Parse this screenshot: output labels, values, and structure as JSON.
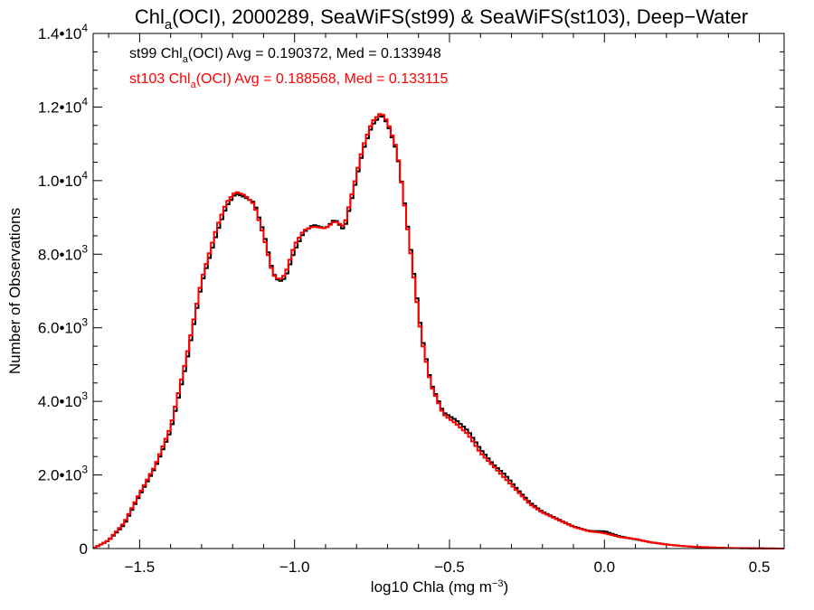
{
  "chart_data": {
    "type": "line",
    "step": true,
    "title": {
      "pre": "Chl",
      "sub": "a",
      "post": "(OCI), 2000289, SeaWiFS(st99) & SeaWiFS(st103), Deep−Water"
    },
    "xlabel": {
      "pre": "log10 Chla (mg m",
      "sup": "−3",
      "post": ")"
    },
    "ylabel": "Number of Observations",
    "xlim": [
      -1.65,
      0.58
    ],
    "ylim": [
      0,
      14000
    ],
    "x_ticks": [
      {
        "value": -1.5,
        "label": "−1.5"
      },
      {
        "value": -1.0,
        "label": "−1.0"
      },
      {
        "value": -0.5,
        "label": "−0.5"
      },
      {
        "value": 0.0,
        "label": "0.0"
      },
      {
        "value": 0.5,
        "label": "0.5"
      }
    ],
    "y_ticks": [
      {
        "value": 0,
        "mant": "0",
        "exp": ""
      },
      {
        "value": 2000,
        "mant": "2.0•10",
        "exp": "3"
      },
      {
        "value": 4000,
        "mant": "4.0•10",
        "exp": "3"
      },
      {
        "value": 6000,
        "mant": "6.0•10",
        "exp": "3"
      },
      {
        "value": 8000,
        "mant": "8.0•10",
        "exp": "3"
      },
      {
        "value": 10000,
        "mant": "1.0•10",
        "exp": "4"
      },
      {
        "value": 12000,
        "mant": "1.2•10",
        "exp": "4"
      },
      {
        "value": 14000,
        "mant": "1.4•10",
        "exp": "4"
      }
    ],
    "annotations": [
      {
        "pre": "st99 Chl",
        "sub": "",
        "post": "(OCI) Avg = 0.190372, Med = 0.133948",
        "color": "#000000"
      },
      {
        "pre": "st103 Chl",
        "sub": "a",
        "post": "(OCI) Avg = 0.188568, Med = 0.133115",
        "color": "#ff0000"
      }
    ],
    "series": [
      {
        "color": "#000000",
        "points": [
          [
            -1.65,
            0
          ],
          [
            -1.6,
            220
          ],
          [
            -1.55,
            650
          ],
          [
            -1.5,
            1450
          ],
          [
            -1.45,
            2200
          ],
          [
            -1.4,
            3200
          ],
          [
            -1.35,
            5000
          ],
          [
            -1.3,
            7200
          ],
          [
            -1.25,
            8600
          ],
          [
            -1.22,
            9300
          ],
          [
            -1.19,
            9650
          ],
          [
            -1.16,
            9550
          ],
          [
            -1.13,
            9400
          ],
          [
            -1.1,
            8600
          ],
          [
            -1.07,
            7500
          ],
          [
            -1.05,
            7250
          ],
          [
            -1.03,
            7350
          ],
          [
            -1.0,
            8100
          ],
          [
            -0.97,
            8600
          ],
          [
            -0.94,
            8800
          ],
          [
            -0.9,
            8700
          ],
          [
            -0.87,
            8950
          ],
          [
            -0.84,
            8650
          ],
          [
            -0.81,
            9700
          ],
          [
            -0.78,
            10800
          ],
          [
            -0.75,
            11500
          ],
          [
            -0.72,
            11800
          ],
          [
            -0.7,
            11550
          ],
          [
            -0.67,
            10800
          ],
          [
            -0.65,
            9700
          ],
          [
            -0.62,
            7800
          ],
          [
            -0.59,
            5800
          ],
          [
            -0.56,
            4500
          ],
          [
            -0.52,
            3700
          ],
          [
            -0.48,
            3500
          ],
          [
            -0.44,
            3200
          ],
          [
            -0.4,
            2700
          ],
          [
            -0.36,
            2300
          ],
          [
            -0.32,
            2000
          ],
          [
            -0.28,
            1600
          ],
          [
            -0.24,
            1250
          ],
          [
            -0.2,
            1000
          ],
          [
            -0.15,
            800
          ],
          [
            -0.1,
            600
          ],
          [
            -0.05,
            480
          ],
          [
            0.0,
            470
          ],
          [
            0.05,
            330
          ],
          [
            0.1,
            250
          ],
          [
            0.15,
            170
          ],
          [
            0.2,
            110
          ],
          [
            0.25,
            70
          ],
          [
            0.3,
            40
          ],
          [
            0.4,
            15
          ],
          [
            0.5,
            5
          ],
          [
            0.58,
            0
          ]
        ]
      },
      {
        "color": "#ff0000",
        "points": [
          [
            -1.65,
            0
          ],
          [
            -1.6,
            230
          ],
          [
            -1.55,
            700
          ],
          [
            -1.5,
            1500
          ],
          [
            -1.45,
            2250
          ],
          [
            -1.4,
            3300
          ],
          [
            -1.35,
            5150
          ],
          [
            -1.3,
            7300
          ],
          [
            -1.25,
            8750
          ],
          [
            -1.22,
            9400
          ],
          [
            -1.19,
            9700
          ],
          [
            -1.16,
            9600
          ],
          [
            -1.13,
            9350
          ],
          [
            -1.1,
            8500
          ],
          [
            -1.07,
            7450
          ],
          [
            -1.05,
            7300
          ],
          [
            -1.03,
            7450
          ],
          [
            -1.0,
            8250
          ],
          [
            -0.97,
            8650
          ],
          [
            -0.94,
            8750
          ],
          [
            -0.9,
            8700
          ],
          [
            -0.87,
            8900
          ],
          [
            -0.84,
            8750
          ],
          [
            -0.81,
            9800
          ],
          [
            -0.78,
            10900
          ],
          [
            -0.75,
            11600
          ],
          [
            -0.72,
            11850
          ],
          [
            -0.7,
            11600
          ],
          [
            -0.67,
            10850
          ],
          [
            -0.65,
            9650
          ],
          [
            -0.62,
            7700
          ],
          [
            -0.59,
            5700
          ],
          [
            -0.56,
            4450
          ],
          [
            -0.52,
            3650
          ],
          [
            -0.48,
            3400
          ],
          [
            -0.44,
            3100
          ],
          [
            -0.4,
            2600
          ],
          [
            -0.36,
            2250
          ],
          [
            -0.32,
            1900
          ],
          [
            -0.28,
            1550
          ],
          [
            -0.24,
            1200
          ],
          [
            -0.2,
            980
          ],
          [
            -0.15,
            780
          ],
          [
            -0.1,
            590
          ],
          [
            -0.05,
            470
          ],
          [
            0.0,
            420
          ],
          [
            0.05,
            310
          ],
          [
            0.1,
            260
          ],
          [
            0.15,
            170
          ],
          [
            0.2,
            110
          ],
          [
            0.25,
            70
          ],
          [
            0.3,
            45
          ],
          [
            0.4,
            15
          ],
          [
            0.5,
            5
          ],
          [
            0.58,
            0
          ]
        ]
      }
    ]
  }
}
